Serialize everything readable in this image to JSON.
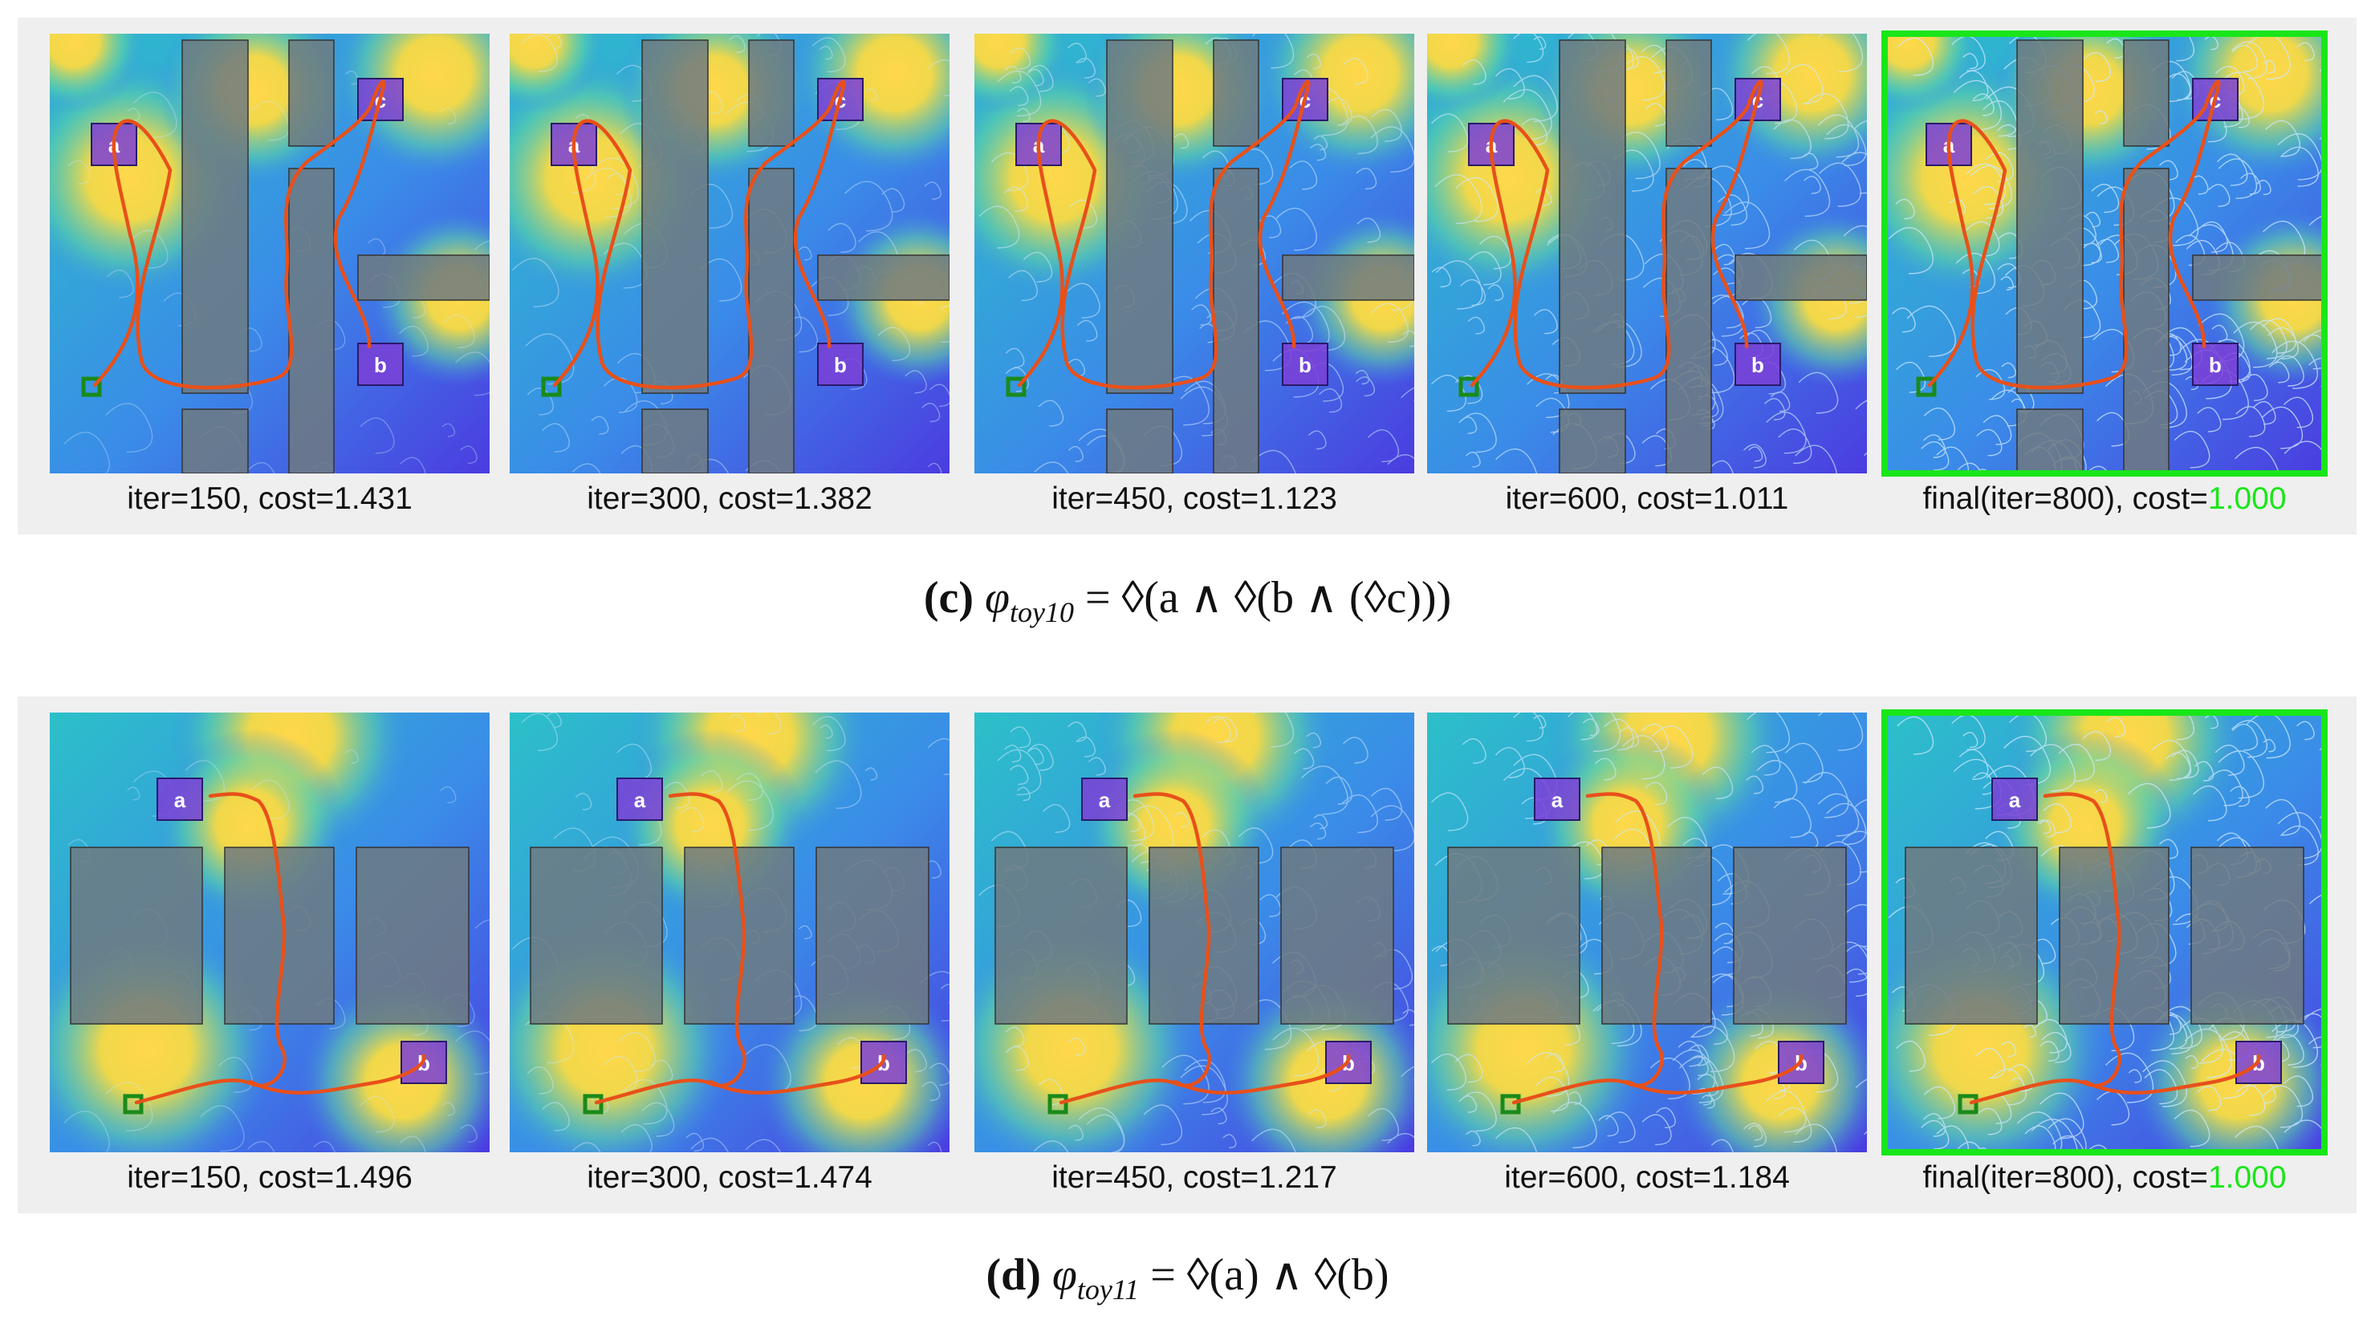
{
  "figures": [
    {
      "id": "c",
      "caption_tag": "(c)",
      "formula_symbol": "φ",
      "formula_subscript": "toy10",
      "formula_body": "= ◊(a ∧ ◊(b ∧ (◊c)))",
      "regions": [
        "a",
        "b",
        "c"
      ],
      "panels": [
        {
          "iter_text": "iter=150, cost=",
          "cost": "1.431",
          "final": false
        },
        {
          "iter_text": "iter=300, cost=",
          "cost": "1.382",
          "final": false
        },
        {
          "iter_text": "iter=450, cost=",
          "cost": "1.123",
          "final": false
        },
        {
          "iter_text": "iter=600, cost=",
          "cost": "1.011",
          "final": false
        },
        {
          "iter_text": "final(iter=800), cost=",
          "cost": "1.000",
          "final": true
        }
      ]
    },
    {
      "id": "d",
      "caption_tag": "(d)",
      "formula_symbol": "φ",
      "formula_subscript": "toy11",
      "formula_body": "= ◊(a) ∧ ◊(b)",
      "regions": [
        "a",
        "b"
      ],
      "panels": [
        {
          "iter_text": "iter=150, cost=",
          "cost": "1.496",
          "final": false
        },
        {
          "iter_text": "iter=300, cost=",
          "cost": "1.474",
          "final": false
        },
        {
          "iter_text": "iter=450, cost=",
          "cost": "1.217",
          "final": false
        },
        {
          "iter_text": "iter=600, cost=",
          "cost": "1.184",
          "final": false
        },
        {
          "iter_text": "final(iter=800), cost=",
          "cost": "1.000",
          "final": true
        }
      ]
    }
  ],
  "colors": {
    "highlight": "#19e619",
    "path": "#e8501a",
    "obstacle": "#6e7a80",
    "region": "#7b3fd6",
    "start": "#1a8a1a",
    "tree": "#cde9ff"
  }
}
